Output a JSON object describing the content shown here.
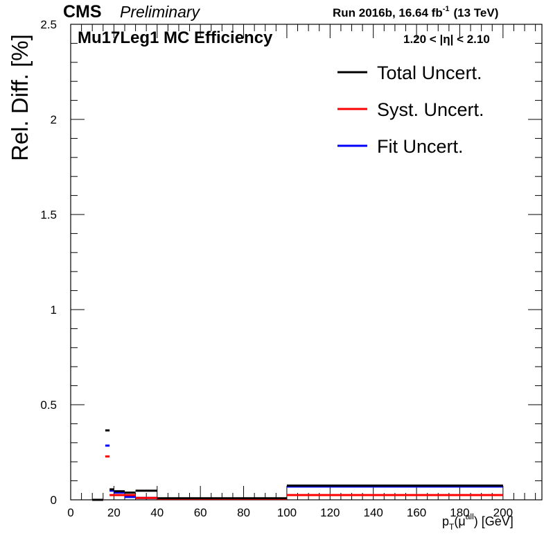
{
  "header": {
    "experiment": "CMS",
    "status": "Preliminary",
    "run_info": "Run 2016b,  16.64 fb",
    "run_info_sup": "-1",
    "energy": "(13 TeV)"
  },
  "chart_data": {
    "type": "line",
    "title": "Mu17Leg1 MC Efficiency",
    "eta_range": "1.20 < |η| < 2.10",
    "ylabel": "Rel. Diff. [%]",
    "xlabel_main": "p",
    "xlabel_sub": "T",
    "xlabel_paren_open": "(μ",
    "xlabel_sup": "all",
    "xlabel_tail": ") [GeV]",
    "xlim": [
      0,
      218
    ],
    "ylim": [
      0,
      2.5
    ],
    "x_ticks": [
      0,
      20,
      40,
      60,
      80,
      100,
      120,
      140,
      160,
      180,
      200
    ],
    "x_tick_labels": [
      "0",
      "20",
      "40",
      "60",
      "80",
      "100",
      "120",
      "140",
      "160",
      "180",
      "200"
    ],
    "y_ticks": [
      0,
      0.5,
      1,
      1.5,
      2,
      2.5
    ],
    "y_tick_labels": [
      "0",
      "0.5",
      "1",
      "1.5",
      "2",
      "2.5"
    ],
    "grid": false,
    "legend_position": "top-right",
    "series": [
      {
        "name": "Total Uncert.",
        "color": "#000000",
        "bins": [
          {
            "x0": 10,
            "x1": 15,
            "y": 0.0
          },
          {
            "x0": 16,
            "x1": 18,
            "y": 0.365
          },
          {
            "x0": 18,
            "x1": 20,
            "y": 0.055
          },
          {
            "x0": 20,
            "x1": 25,
            "y": 0.045
          },
          {
            "x0": 25,
            "x1": 30,
            "y": 0.038
          },
          {
            "x0": 30,
            "x1": 40,
            "y": 0.048
          },
          {
            "x0": 40,
            "x1": 100,
            "y": 0.008
          },
          {
            "x0": 100,
            "x1": 200,
            "y": 0.075
          }
        ]
      },
      {
        "name": "Syst. Uncert.",
        "color": "#ff0000",
        "bins": [
          {
            "x0": 10,
            "x1": 15,
            "y": 0.0
          },
          {
            "x0": 16,
            "x1": 18,
            "y": 0.228
          },
          {
            "x0": 18,
            "x1": 20,
            "y": 0.025
          },
          {
            "x0": 20,
            "x1": 25,
            "y": 0.025
          },
          {
            "x0": 25,
            "x1": 30,
            "y": 0.025
          },
          {
            "x0": 30,
            "x1": 40,
            "y": 0.01
          },
          {
            "x0": 40,
            "x1": 100,
            "y": 0.005
          },
          {
            "x0": 100,
            "x1": 200,
            "y": 0.025
          }
        ]
      },
      {
        "name": "Fit Uncert.",
        "color": "#0000ff",
        "bins": [
          {
            "x0": 10,
            "x1": 15,
            "y": 0.0
          },
          {
            "x0": 16,
            "x1": 18,
            "y": 0.285
          },
          {
            "x0": 18,
            "x1": 20,
            "y": 0.048
          },
          {
            "x0": 20,
            "x1": 25,
            "y": 0.038
          },
          {
            "x0": 25,
            "x1": 30,
            "y": 0.015
          },
          {
            "x0": 30,
            "x1": 40,
            "y": 0.01
          },
          {
            "x0": 40,
            "x1": 100,
            "y": 0.007
          },
          {
            "x0": 100,
            "x1": 200,
            "y": 0.07
          }
        ]
      }
    ]
  }
}
